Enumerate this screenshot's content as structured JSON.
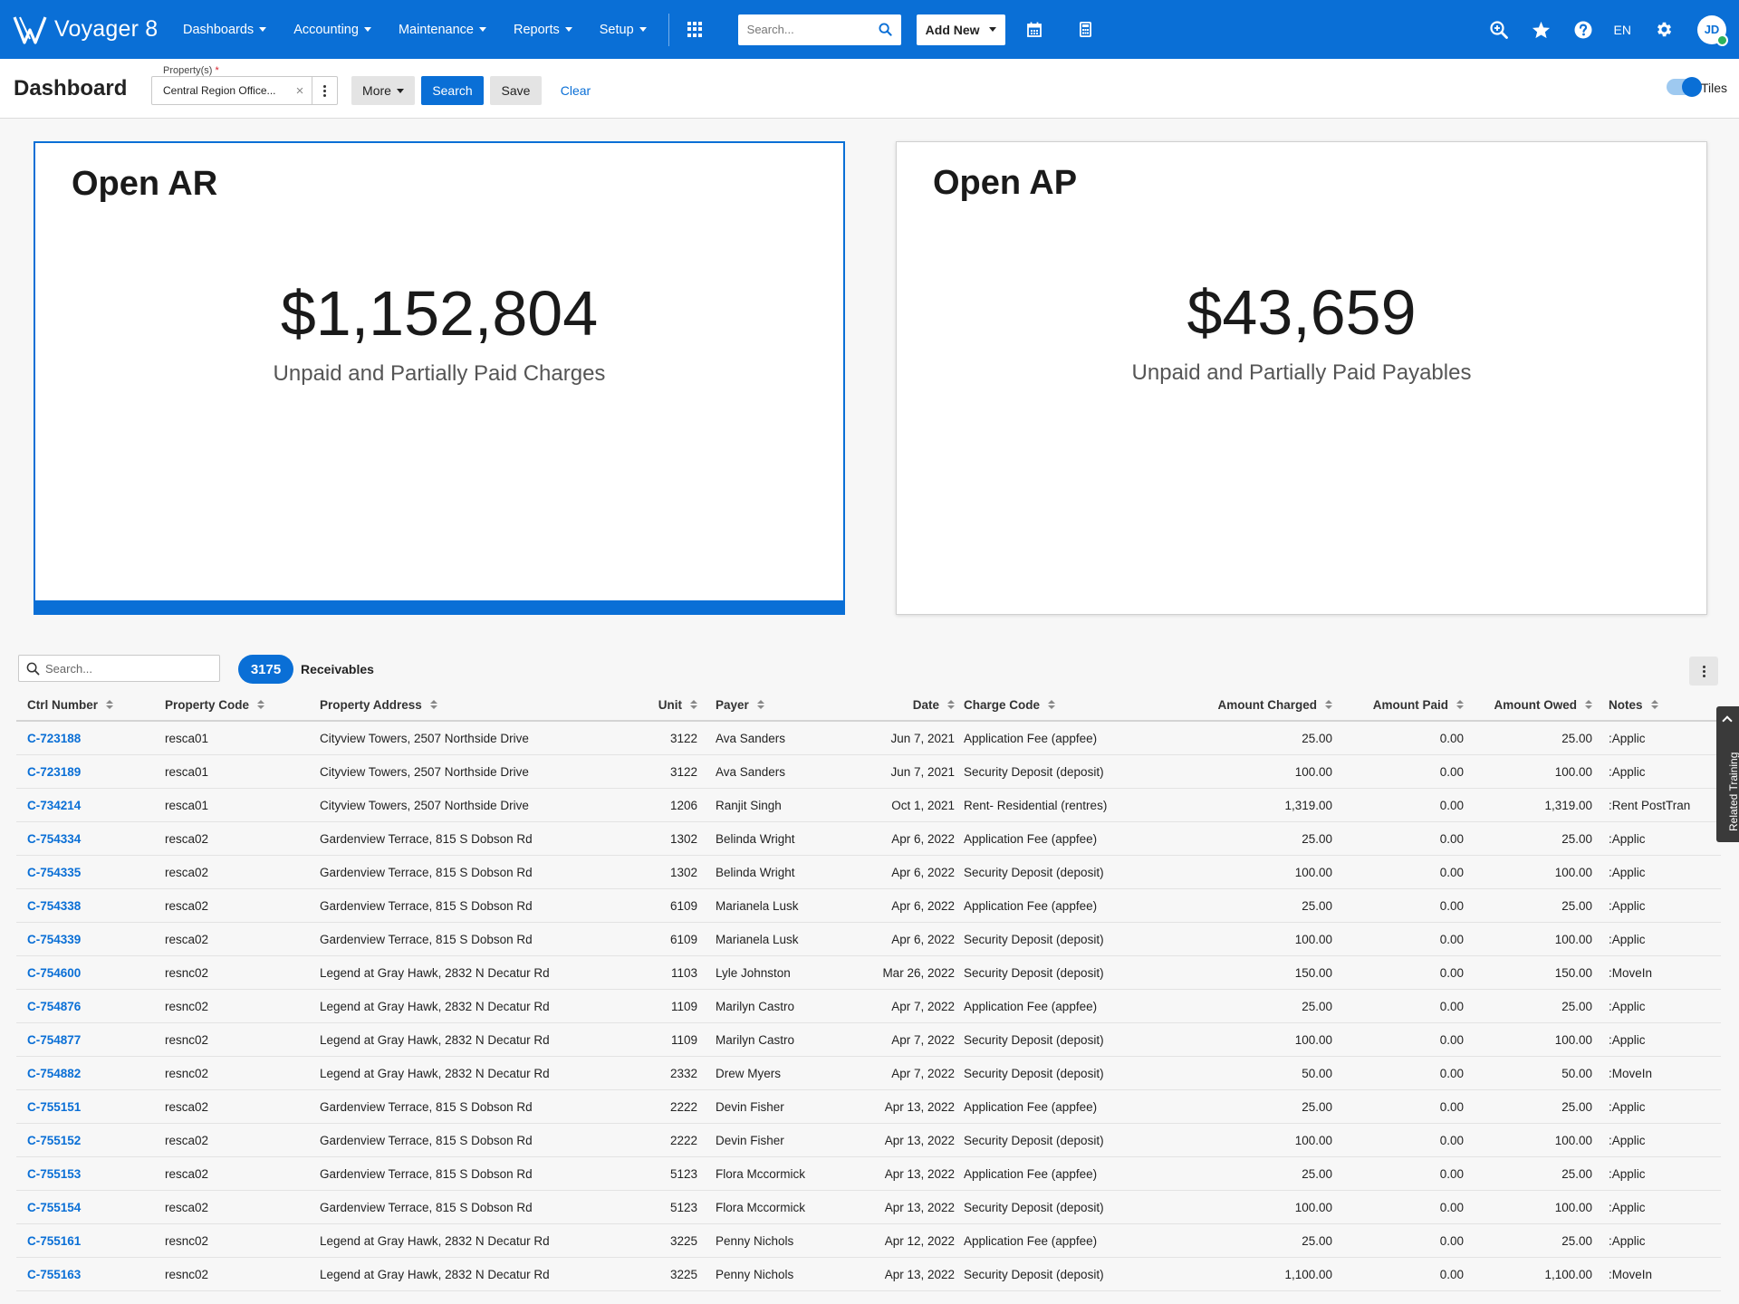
{
  "app": {
    "name": "Voyager 8",
    "nav": [
      {
        "label": "Dashboards"
      },
      {
        "label": "Accounting"
      },
      {
        "label": "Maintenance"
      },
      {
        "label": "Reports"
      },
      {
        "label": "Setup"
      }
    ],
    "search_placeholder": "Search...",
    "add_new_label": "Add New",
    "language": "EN",
    "avatar_initials": "JD"
  },
  "toolbar": {
    "title": "Dashboard",
    "property_label": "Property(s)",
    "property_required_mark": "*",
    "property_value": "Central Region Office...",
    "more_label": "More",
    "search_label": "Search",
    "save_label": "Save",
    "clear_label": "Clear",
    "tiles_label": "Tiles"
  },
  "tiles": [
    {
      "title": "Open AR",
      "amount": "$1,152,804",
      "subtitle": "Unpaid and Partially Paid Charges"
    },
    {
      "title": "Open AP",
      "amount": "$43,659",
      "subtitle": "Unpaid and Partially Paid Payables"
    }
  ],
  "table": {
    "search_placeholder": "Search...",
    "count": "3175",
    "count_label": "Receivables",
    "columns": {
      "ctrl": "Ctrl Number",
      "pcode": "Property Code",
      "addr": "Property Address",
      "unit": "Unit",
      "payer": "Payer",
      "date": "Date",
      "charge": "Charge Code",
      "achg": "Amount Charged",
      "apaid": "Amount Paid",
      "aowed": "Amount Owed",
      "notes": "Notes"
    },
    "rows": [
      {
        "ctrl": "C-723188",
        "pcode": "resca01",
        "addr": "Cityview Towers, 2507 Northside Drive",
        "unit": "3122",
        "payer": "Ava Sanders",
        "date": "Jun 7, 2021",
        "charge": "Application Fee (appfee)",
        "achg": "25.00",
        "apaid": "0.00",
        "aowed": "25.00",
        "notes": ":Applic"
      },
      {
        "ctrl": "C-723189",
        "pcode": "resca01",
        "addr": "Cityview Towers, 2507 Northside Drive",
        "unit": "3122",
        "payer": "Ava Sanders",
        "date": "Jun 7, 2021",
        "charge": "Security Deposit (deposit)",
        "achg": "100.00",
        "apaid": "0.00",
        "aowed": "100.00",
        "notes": ":Applic"
      },
      {
        "ctrl": "C-734214",
        "pcode": "resca01",
        "addr": "Cityview Towers, 2507 Northside Drive",
        "unit": "1206",
        "payer": "Ranjit Singh",
        "date": "Oct 1, 2021",
        "charge": "Rent- Residential (rentres)",
        "achg": "1,319.00",
        "apaid": "0.00",
        "aowed": "1,319.00",
        "notes": ":Rent PostTran"
      },
      {
        "ctrl": "C-754334",
        "pcode": "resca02",
        "addr": "Gardenview Terrace, 815 S Dobson Rd",
        "unit": "1302",
        "payer": "Belinda Wright",
        "date": "Apr 6, 2022",
        "charge": "Application Fee (appfee)",
        "achg": "25.00",
        "apaid": "0.00",
        "aowed": "25.00",
        "notes": ":Applic"
      },
      {
        "ctrl": "C-754335",
        "pcode": "resca02",
        "addr": "Gardenview Terrace, 815 S Dobson Rd",
        "unit": "1302",
        "payer": "Belinda Wright",
        "date": "Apr 6, 2022",
        "charge": "Security Deposit (deposit)",
        "achg": "100.00",
        "apaid": "0.00",
        "aowed": "100.00",
        "notes": ":Applic"
      },
      {
        "ctrl": "C-754338",
        "pcode": "resca02",
        "addr": "Gardenview Terrace, 815 S Dobson Rd",
        "unit": "6109",
        "payer": "Marianela Lusk",
        "date": "Apr 6, 2022",
        "charge": "Application Fee (appfee)",
        "achg": "25.00",
        "apaid": "0.00",
        "aowed": "25.00",
        "notes": ":Applic"
      },
      {
        "ctrl": "C-754339",
        "pcode": "resca02",
        "addr": "Gardenview Terrace, 815 S Dobson Rd",
        "unit": "6109",
        "payer": "Marianela Lusk",
        "date": "Apr 6, 2022",
        "charge": "Security Deposit (deposit)",
        "achg": "100.00",
        "apaid": "0.00",
        "aowed": "100.00",
        "notes": ":Applic"
      },
      {
        "ctrl": "C-754600",
        "pcode": "resnc02",
        "addr": "Legend at Gray Hawk, 2832 N Decatur Rd",
        "unit": "1103",
        "payer": "Lyle Johnston",
        "date": "Mar 26, 2022",
        "charge": "Security Deposit (deposit)",
        "achg": "150.00",
        "apaid": "0.00",
        "aowed": "150.00",
        "notes": ":MoveIn"
      },
      {
        "ctrl": "C-754876",
        "pcode": "resnc02",
        "addr": "Legend at Gray Hawk, 2832 N Decatur Rd",
        "unit": "1109",
        "payer": "Marilyn Castro",
        "date": "Apr 7, 2022",
        "charge": "Application Fee (appfee)",
        "achg": "25.00",
        "apaid": "0.00",
        "aowed": "25.00",
        "notes": ":Applic"
      },
      {
        "ctrl": "C-754877",
        "pcode": "resnc02",
        "addr": "Legend at Gray Hawk, 2832 N Decatur Rd",
        "unit": "1109",
        "payer": "Marilyn Castro",
        "date": "Apr 7, 2022",
        "charge": "Security Deposit (deposit)",
        "achg": "100.00",
        "apaid": "0.00",
        "aowed": "100.00",
        "notes": ":Applic"
      },
      {
        "ctrl": "C-754882",
        "pcode": "resnc02",
        "addr": "Legend at Gray Hawk, 2832 N Decatur Rd",
        "unit": "2332",
        "payer": "Drew Myers",
        "date": "Apr 7, 2022",
        "charge": "Security Deposit (deposit)",
        "achg": "50.00",
        "apaid": "0.00",
        "aowed": "50.00",
        "notes": ":MoveIn"
      },
      {
        "ctrl": "C-755151",
        "pcode": "resca02",
        "addr": "Gardenview Terrace, 815 S Dobson Rd",
        "unit": "2222",
        "payer": "Devin Fisher",
        "date": "Apr 13, 2022",
        "charge": "Application Fee (appfee)",
        "achg": "25.00",
        "apaid": "0.00",
        "aowed": "25.00",
        "notes": ":Applic"
      },
      {
        "ctrl": "C-755152",
        "pcode": "resca02",
        "addr": "Gardenview Terrace, 815 S Dobson Rd",
        "unit": "2222",
        "payer": "Devin Fisher",
        "date": "Apr 13, 2022",
        "charge": "Security Deposit (deposit)",
        "achg": "100.00",
        "apaid": "0.00",
        "aowed": "100.00",
        "notes": ":Applic"
      },
      {
        "ctrl": "C-755153",
        "pcode": "resca02",
        "addr": "Gardenview Terrace, 815 S Dobson Rd",
        "unit": "5123",
        "payer": "Flora Mccormick",
        "date": "Apr 13, 2022",
        "charge": "Application Fee (appfee)",
        "achg": "25.00",
        "apaid": "0.00",
        "aowed": "25.00",
        "notes": ":Applic"
      },
      {
        "ctrl": "C-755154",
        "pcode": "resca02",
        "addr": "Gardenview Terrace, 815 S Dobson Rd",
        "unit": "5123",
        "payer": "Flora Mccormick",
        "date": "Apr 13, 2022",
        "charge": "Security Deposit (deposit)",
        "achg": "100.00",
        "apaid": "0.00",
        "aowed": "100.00",
        "notes": ":Applic"
      },
      {
        "ctrl": "C-755161",
        "pcode": "resnc02",
        "addr": "Legend at Gray Hawk, 2832 N Decatur Rd",
        "unit": "3225",
        "payer": "Penny Nichols",
        "date": "Apr 12, 2022",
        "charge": "Application Fee (appfee)",
        "achg": "25.00",
        "apaid": "0.00",
        "aowed": "25.00",
        "notes": ":Applic"
      },
      {
        "ctrl": "C-755163",
        "pcode": "resnc02",
        "addr": "Legend at Gray Hawk, 2832 N Decatur Rd",
        "unit": "3225",
        "payer": "Penny Nichols",
        "date": "Apr 13, 2022",
        "charge": "Security Deposit (deposit)",
        "achg": "1,100.00",
        "apaid": "0.00",
        "aowed": "1,100.00",
        "notes": ":MoveIn"
      }
    ]
  },
  "side_tab": {
    "label": "Related Training"
  },
  "icons": {
    "brand": "voyager-logo-icon",
    "search": "search-icon",
    "apps": "apps-grid-icon",
    "calendar": "calendar-icon",
    "calculator": "calculator-icon",
    "zoom": "zoom-in-icon",
    "favorites": "star-icon",
    "help": "help-icon",
    "settings": "gear-icon"
  },
  "colors": {
    "primary": "#0a6fd6",
    "online": "#2db35d"
  }
}
